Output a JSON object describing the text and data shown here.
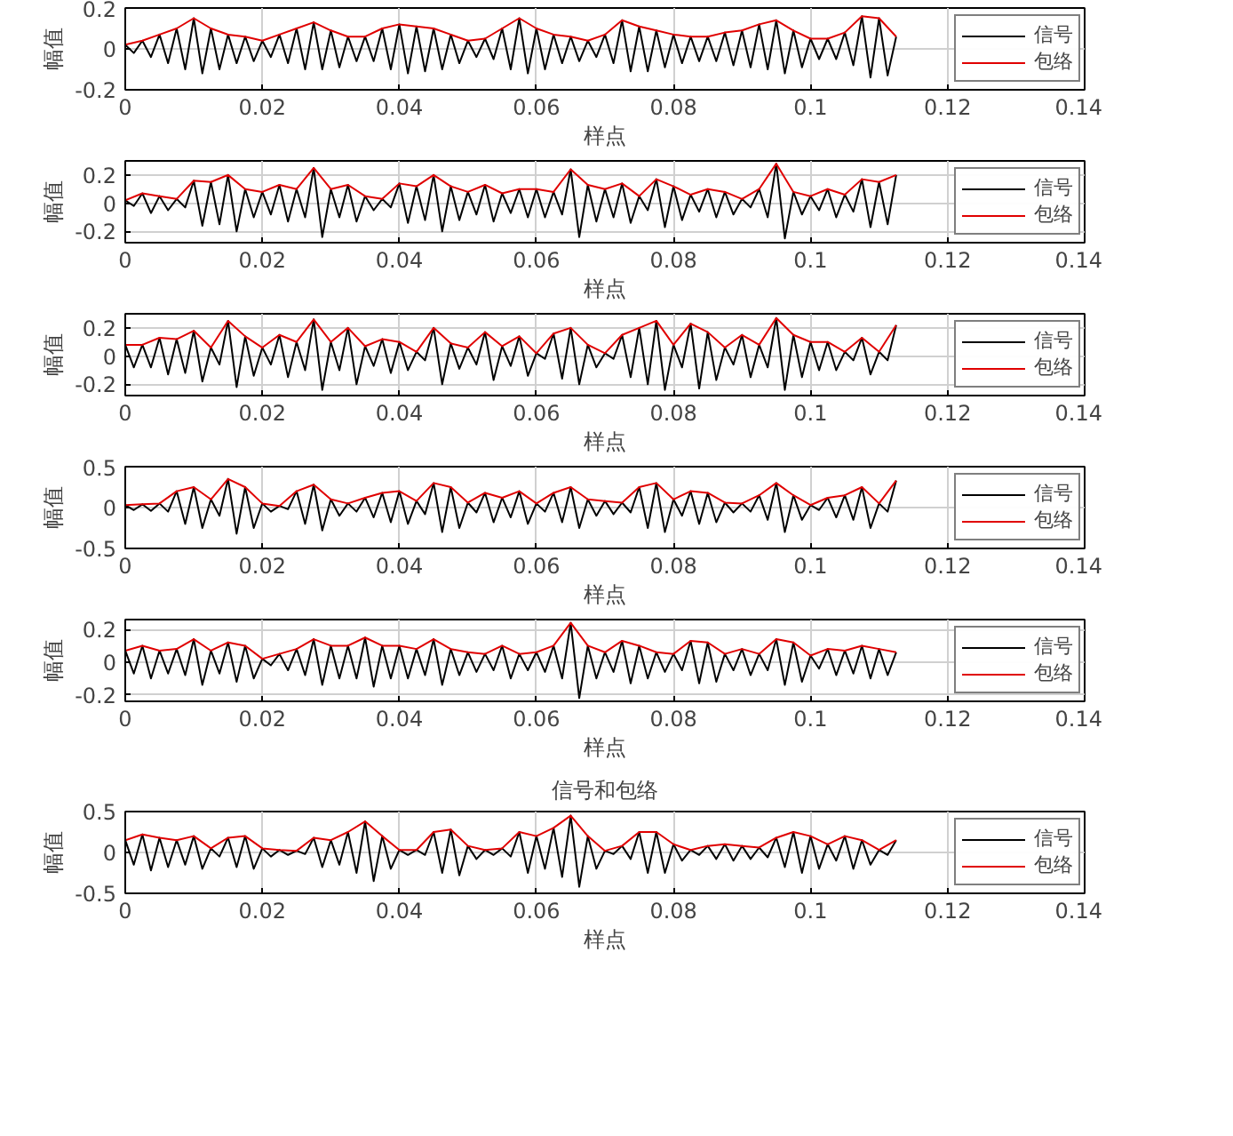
{
  "chart_data": [
    {
      "type": "line",
      "xlabel": "样点",
      "ylabel": "幅值",
      "xlim": [
        0,
        0.14
      ],
      "xticks": [
        0,
        0.02,
        0.04,
        0.06,
        0.08,
        0.1,
        0.12,
        0.14
      ],
      "ylim": [
        -0.2,
        0.2
      ],
      "yticks": [
        -0.2,
        0,
        0.2
      ],
      "grid": true,
      "legend": "right",
      "line_style": "solid",
      "x": [
        0,
        0.0025,
        0.005,
        0.0075,
        0.01,
        0.0125,
        0.015,
        0.0175,
        0.02,
        0.0225,
        0.025,
        0.0275,
        0.03,
        0.0325,
        0.035,
        0.0375,
        0.04,
        0.0425,
        0.045,
        0.0475,
        0.05,
        0.0525,
        0.055,
        0.0575,
        0.06,
        0.0625,
        0.065,
        0.0675,
        0.07,
        0.0725,
        0.075,
        0.0775,
        0.08,
        0.0825,
        0.085,
        0.0875,
        0.09,
        0.0925,
        0.095,
        0.0975,
        0.1,
        0.1025,
        0.105,
        0.1075,
        0.11,
        0.1125
      ],
      "series": [
        {
          "name": "信号",
          "color": "#000000",
          "x": [
            0,
            0.00125,
            0.0025,
            0.00375,
            0.005,
            0.00625,
            0.0075,
            0.00875,
            0.01,
            0.01125,
            0.0125,
            0.01375,
            0.015,
            0.01625,
            0.0175,
            0.01875,
            0.02,
            0.02125,
            0.0225,
            0.02375,
            0.025,
            0.02625,
            0.0275,
            0.02875,
            0.03,
            0.03125,
            0.0325,
            0.03375,
            0.035,
            0.03625,
            0.0375,
            0.03875,
            0.04,
            0.04125,
            0.0425,
            0.04375,
            0.045,
            0.04625,
            0.0475,
            0.04875,
            0.05,
            0.05125,
            0.0525,
            0.05375,
            0.055,
            0.05625,
            0.0575,
            0.05875,
            0.06,
            0.06125,
            0.0625,
            0.06375,
            0.065,
            0.06625,
            0.0675,
            0.06875,
            0.07,
            0.07125,
            0.0725,
            0.07375,
            0.075,
            0.07625,
            0.0775,
            0.07875,
            0.08,
            0.08125,
            0.0825,
            0.08375,
            0.085,
            0.08625,
            0.0875,
            0.08875,
            0.09,
            0.09125,
            0.0925,
            0.09375,
            0.095,
            0.09625,
            0.0975,
            0.09875,
            0.1,
            0.10125,
            0.1025,
            0.10375,
            0.105,
            0.10625,
            0.1075,
            0.10875,
            0.11,
            0.11125,
            0.1125
          ],
          "values": [
            0.02,
            -0.02,
            0.04,
            -0.04,
            0.07,
            -0.07,
            0.1,
            -0.1,
            0.15,
            -0.12,
            0.1,
            -0.1,
            0.07,
            -0.07,
            0.06,
            -0.06,
            0.04,
            -0.04,
            0.07,
            -0.07,
            0.1,
            -0.1,
            0.13,
            -0.1,
            0.09,
            -0.09,
            0.06,
            -0.06,
            0.06,
            -0.06,
            0.1,
            -0.1,
            0.12,
            -0.12,
            0.11,
            -0.11,
            0.1,
            -0.1,
            0.07,
            -0.07,
            0.04,
            -0.04,
            0.05,
            -0.05,
            0.1,
            -0.1,
            0.15,
            -0.12,
            0.1,
            -0.1,
            0.07,
            -0.07,
            0.06,
            -0.06,
            0.04,
            -0.04,
            0.07,
            -0.07,
            0.14,
            -0.11,
            0.11,
            -0.11,
            0.09,
            -0.09,
            0.07,
            -0.07,
            0.06,
            -0.06,
            0.06,
            -0.06,
            0.08,
            -0.08,
            0.09,
            -0.09,
            0.12,
            -0.1,
            0.14,
            -0.12,
            0.09,
            -0.09,
            0.05,
            -0.05,
            0.05,
            -0.05,
            0.08,
            -0.08,
            0.16,
            -0.14,
            0.15,
            -0.13,
            0.06
          ]
        },
        {
          "name": "包络",
          "color": "#e00000",
          "values": [
            0.02,
            0.04,
            0.07,
            0.1,
            0.15,
            0.1,
            0.07,
            0.06,
            0.04,
            0.07,
            0.1,
            0.13,
            0.09,
            0.06,
            0.06,
            0.1,
            0.12,
            0.11,
            0.1,
            0.07,
            0.04,
            0.05,
            0.1,
            0.15,
            0.1,
            0.07,
            0.06,
            0.04,
            0.07,
            0.14,
            0.11,
            0.09,
            0.07,
            0.06,
            0.06,
            0.08,
            0.09,
            0.12,
            0.14,
            0.09,
            0.05,
            0.05,
            0.08,
            0.16,
            0.15,
            0.06
          ]
        }
      ]
    },
    {
      "type": "line",
      "xlabel": "样点",
      "ylabel": "幅值",
      "xlim": [
        0,
        0.14
      ],
      "xticks": [
        0,
        0.02,
        0.04,
        0.06,
        0.08,
        0.1,
        0.12,
        0.14
      ],
      "ylim": [
        -0.28,
        0.3
      ],
      "yticks": [
        -0.2,
        0,
        0.2
      ],
      "grid": true,
      "legend": "right",
      "line_style": "solid",
      "x": [
        0,
        0.0025,
        0.005,
        0.0075,
        0.01,
        0.0125,
        0.015,
        0.0175,
        0.02,
        0.0225,
        0.025,
        0.0275,
        0.03,
        0.0325,
        0.035,
        0.0375,
        0.04,
        0.0425,
        0.045,
        0.0475,
        0.05,
        0.0525,
        0.055,
        0.0575,
        0.06,
        0.0625,
        0.065,
        0.0675,
        0.07,
        0.0725,
        0.075,
        0.0775,
        0.08,
        0.0825,
        0.085,
        0.0875,
        0.09,
        0.0925,
        0.095,
        0.0975,
        0.1,
        0.1025,
        0.105,
        0.1075,
        0.11,
        0.1125
      ],
      "series": [
        {
          "name": "信号",
          "color": "#000000",
          "x": [
            0,
            0.00125,
            0.0025,
            0.00375,
            0.005,
            0.00625,
            0.0075,
            0.00875,
            0.01,
            0.01125,
            0.0125,
            0.01375,
            0.015,
            0.01625,
            0.0175,
            0.01875,
            0.02,
            0.02125,
            0.0225,
            0.02375,
            0.025,
            0.02625,
            0.0275,
            0.02875,
            0.03,
            0.03125,
            0.0325,
            0.03375,
            0.035,
            0.03625,
            0.0375,
            0.03875,
            0.04,
            0.04125,
            0.0425,
            0.04375,
            0.045,
            0.04625,
            0.0475,
            0.04875,
            0.05,
            0.05125,
            0.0525,
            0.05375,
            0.055,
            0.05625,
            0.0575,
            0.05875,
            0.06,
            0.06125,
            0.0625,
            0.06375,
            0.065,
            0.06625,
            0.0675,
            0.06875,
            0.07,
            0.07125,
            0.0725,
            0.07375,
            0.075,
            0.07625,
            0.0775,
            0.07875,
            0.08,
            0.08125,
            0.0825,
            0.08375,
            0.085,
            0.08625,
            0.0875,
            0.08875,
            0.09,
            0.09125,
            0.0925,
            0.09375,
            0.095,
            0.09625,
            0.0975,
            0.09875,
            0.1,
            0.10125,
            0.1025,
            0.10375,
            0.105,
            0.10625,
            0.1075,
            0.10875,
            0.11,
            0.11125,
            0.1125
          ],
          "values": [
            0.02,
            -0.02,
            0.07,
            -0.07,
            0.05,
            -0.05,
            0.03,
            -0.03,
            0.16,
            -0.16,
            0.15,
            -0.15,
            0.2,
            -0.2,
            0.1,
            -0.1,
            0.08,
            -0.08,
            0.13,
            -0.13,
            0.1,
            -0.1,
            0.25,
            -0.24,
            0.1,
            -0.1,
            0.13,
            -0.13,
            0.05,
            -0.05,
            0.03,
            -0.03,
            0.14,
            -0.14,
            0.12,
            -0.12,
            0.2,
            -0.2,
            0.12,
            -0.12,
            0.08,
            -0.08,
            0.13,
            -0.13,
            0.07,
            -0.07,
            0.1,
            -0.1,
            0.1,
            -0.1,
            0.08,
            -0.08,
            0.24,
            -0.24,
            0.13,
            -0.13,
            0.1,
            -0.1,
            0.14,
            -0.14,
            0.05,
            -0.05,
            0.17,
            -0.17,
            0.12,
            -0.12,
            0.06,
            -0.06,
            0.1,
            -0.1,
            0.08,
            -0.08,
            0.03,
            -0.03,
            0.1,
            -0.1,
            0.28,
            -0.25,
            0.08,
            -0.08,
            0.05,
            -0.05,
            0.1,
            -0.1,
            0.06,
            -0.06,
            0.17,
            -0.17,
            0.15,
            -0.15,
            0.2
          ]
        },
        {
          "name": "包络",
          "color": "#e00000",
          "values": [
            0.02,
            0.07,
            0.05,
            0.03,
            0.16,
            0.15,
            0.2,
            0.1,
            0.08,
            0.13,
            0.1,
            0.25,
            0.1,
            0.13,
            0.05,
            0.03,
            0.14,
            0.12,
            0.2,
            0.12,
            0.08,
            0.13,
            0.07,
            0.1,
            0.1,
            0.08,
            0.24,
            0.13,
            0.1,
            0.14,
            0.05,
            0.17,
            0.12,
            0.06,
            0.1,
            0.08,
            0.03,
            0.1,
            0.28,
            0.08,
            0.05,
            0.1,
            0.06,
            0.17,
            0.15,
            0.2
          ]
        }
      ]
    },
    {
      "type": "line",
      "xlabel": "样点",
      "ylabel": "幅值",
      "xlim": [
        0,
        0.14
      ],
      "xticks": [
        0,
        0.02,
        0.04,
        0.06,
        0.08,
        0.1,
        0.12,
        0.14
      ],
      "ylim": [
        -0.28,
        0.3
      ],
      "yticks": [
        -0.2,
        0,
        0.2
      ],
      "grid": true,
      "legend": "right",
      "line_style": "solid",
      "x": [
        0,
        0.0025,
        0.005,
        0.0075,
        0.01,
        0.0125,
        0.015,
        0.0175,
        0.02,
        0.0225,
        0.025,
        0.0275,
        0.03,
        0.0325,
        0.035,
        0.0375,
        0.04,
        0.0425,
        0.045,
        0.0475,
        0.05,
        0.0525,
        0.055,
        0.0575,
        0.06,
        0.0625,
        0.065,
        0.0675,
        0.07,
        0.0725,
        0.075,
        0.0775,
        0.08,
        0.0825,
        0.085,
        0.0875,
        0.09,
        0.0925,
        0.095,
        0.0975,
        0.1,
        0.1025,
        0.105,
        0.1075,
        0.11,
        0.1125
      ],
      "series": [
        {
          "name": "信号",
          "color": "#000000",
          "x": [
            0,
            0.00125,
            0.0025,
            0.00375,
            0.005,
            0.00625,
            0.0075,
            0.00875,
            0.01,
            0.01125,
            0.0125,
            0.01375,
            0.015,
            0.01625,
            0.0175,
            0.01875,
            0.02,
            0.02125,
            0.0225,
            0.02375,
            0.025,
            0.02625,
            0.0275,
            0.02875,
            0.03,
            0.03125,
            0.0325,
            0.03375,
            0.035,
            0.03625,
            0.0375,
            0.03875,
            0.04,
            0.04125,
            0.0425,
            0.04375,
            0.045,
            0.04625,
            0.0475,
            0.04875,
            0.05,
            0.05125,
            0.0525,
            0.05375,
            0.055,
            0.05625,
            0.0575,
            0.05875,
            0.06,
            0.06125,
            0.0625,
            0.06375,
            0.065,
            0.06625,
            0.0675,
            0.06875,
            0.07,
            0.07125,
            0.0725,
            0.07375,
            0.075,
            0.07625,
            0.0775,
            0.07875,
            0.08,
            0.08125,
            0.0825,
            0.08375,
            0.085,
            0.08625,
            0.0875,
            0.08875,
            0.09,
            0.09125,
            0.0925,
            0.09375,
            0.095,
            0.09625,
            0.0975,
            0.09875,
            0.1,
            0.10125,
            0.1025,
            0.10375,
            0.105,
            0.10625,
            0.1075,
            0.10875,
            0.11,
            0.11125,
            0.1125
          ],
          "values": [
            0.08,
            -0.08,
            0.08,
            -0.08,
            0.13,
            -0.13,
            0.12,
            -0.12,
            0.18,
            -0.18,
            0.06,
            -0.06,
            0.25,
            -0.22,
            0.14,
            -0.14,
            0.06,
            -0.06,
            0.15,
            -0.15,
            0.1,
            -0.1,
            0.26,
            -0.24,
            0.1,
            -0.1,
            0.2,
            -0.2,
            0.07,
            -0.07,
            0.12,
            -0.12,
            0.1,
            -0.1,
            0.03,
            -0.03,
            0.2,
            -0.2,
            0.09,
            -0.09,
            0.06,
            -0.06,
            0.17,
            -0.17,
            0.07,
            -0.07,
            0.14,
            -0.14,
            0.02,
            -0.02,
            0.16,
            -0.16,
            0.2,
            -0.2,
            0.08,
            -0.08,
            0.02,
            -0.02,
            0.15,
            -0.15,
            0.2,
            -0.2,
            0.25,
            -0.24,
            0.08,
            -0.08,
            0.23,
            -0.23,
            0.17,
            -0.17,
            0.06,
            -0.06,
            0.15,
            -0.15,
            0.08,
            -0.08,
            0.27,
            -0.24,
            0.15,
            -0.15,
            0.1,
            -0.1,
            0.1,
            -0.1,
            0.03,
            -0.03,
            0.13,
            -0.13,
            0.03,
            -0.03,
            0.22
          ]
        },
        {
          "name": "包络",
          "color": "#e00000",
          "values": [
            0.08,
            0.08,
            0.13,
            0.12,
            0.18,
            0.06,
            0.25,
            0.14,
            0.06,
            0.15,
            0.1,
            0.26,
            0.1,
            0.2,
            0.07,
            0.12,
            0.1,
            0.03,
            0.2,
            0.09,
            0.06,
            0.17,
            0.07,
            0.14,
            0.02,
            0.16,
            0.2,
            0.08,
            0.02,
            0.15,
            0.2,
            0.25,
            0.08,
            0.23,
            0.17,
            0.06,
            0.15,
            0.08,
            0.27,
            0.15,
            0.1,
            0.1,
            0.03,
            0.13,
            0.03,
            0.22
          ]
        }
      ]
    },
    {
      "type": "line",
      "xlabel": "样点",
      "ylabel": "幅值",
      "xlim": [
        0,
        0.14
      ],
      "xticks": [
        0,
        0.02,
        0.04,
        0.06,
        0.08,
        0.1,
        0.12,
        0.14
      ],
      "ylim": [
        -0.5,
        0.5
      ],
      "yticks": [
        -0.5,
        0,
        0.5
      ],
      "grid": true,
      "legend": "right",
      "line_style": "solid",
      "x": [
        0,
        0.0025,
        0.005,
        0.0075,
        0.01,
        0.0125,
        0.015,
        0.0175,
        0.02,
        0.0225,
        0.025,
        0.0275,
        0.03,
        0.0325,
        0.035,
        0.0375,
        0.04,
        0.0425,
        0.045,
        0.0475,
        0.05,
        0.0525,
        0.055,
        0.0575,
        0.06,
        0.0625,
        0.065,
        0.0675,
        0.07,
        0.0725,
        0.075,
        0.0775,
        0.08,
        0.0825,
        0.085,
        0.0875,
        0.09,
        0.0925,
        0.095,
        0.0975,
        0.1,
        0.1025,
        0.105,
        0.1075,
        0.11,
        0.1125
      ],
      "series": [
        {
          "name": "信号",
          "color": "#000000",
          "x": [
            0,
            0.00125,
            0.0025,
            0.00375,
            0.005,
            0.00625,
            0.0075,
            0.00875,
            0.01,
            0.01125,
            0.0125,
            0.01375,
            0.015,
            0.01625,
            0.0175,
            0.01875,
            0.02,
            0.02125,
            0.0225,
            0.02375,
            0.025,
            0.02625,
            0.0275,
            0.02875,
            0.03,
            0.03125,
            0.0325,
            0.03375,
            0.035,
            0.03625,
            0.0375,
            0.03875,
            0.04,
            0.04125,
            0.0425,
            0.04375,
            0.045,
            0.04625,
            0.0475,
            0.04875,
            0.05,
            0.05125,
            0.0525,
            0.05375,
            0.055,
            0.05625,
            0.0575,
            0.05875,
            0.06,
            0.06125,
            0.0625,
            0.06375,
            0.065,
            0.06625,
            0.0675,
            0.06875,
            0.07,
            0.07125,
            0.0725,
            0.07375,
            0.075,
            0.07625,
            0.0775,
            0.07875,
            0.08,
            0.08125,
            0.0825,
            0.08375,
            0.085,
            0.08625,
            0.0875,
            0.08875,
            0.09,
            0.09125,
            0.0925,
            0.09375,
            0.095,
            0.09625,
            0.0975,
            0.09875,
            0.1,
            0.10125,
            0.1025,
            0.10375,
            0.105,
            0.10625,
            0.1075,
            0.10875,
            0.11,
            0.11125,
            0.1125
          ],
          "values": [
            0.03,
            -0.03,
            0.04,
            -0.04,
            0.05,
            -0.05,
            0.2,
            -0.2,
            0.25,
            -0.25,
            0.1,
            -0.1,
            0.35,
            -0.32,
            0.25,
            -0.25,
            0.05,
            -0.05,
            0.02,
            -0.02,
            0.2,
            -0.2,
            0.28,
            -0.28,
            0.1,
            -0.1,
            0.05,
            -0.05,
            0.12,
            -0.12,
            0.18,
            -0.18,
            0.2,
            -0.2,
            0.08,
            -0.08,
            0.3,
            -0.3,
            0.25,
            -0.25,
            0.06,
            -0.06,
            0.18,
            -0.18,
            0.12,
            -0.12,
            0.2,
            -0.2,
            0.05,
            -0.05,
            0.18,
            -0.18,
            0.25,
            -0.25,
            0.1,
            -0.1,
            0.08,
            -0.08,
            0.06,
            -0.06,
            0.25,
            -0.25,
            0.3,
            -0.3,
            0.1,
            -0.1,
            0.2,
            -0.2,
            0.18,
            -0.18,
            0.06,
            -0.06,
            0.05,
            -0.05,
            0.15,
            -0.15,
            0.3,
            -0.3,
            0.15,
            -0.15,
            0.03,
            -0.03,
            0.12,
            -0.12,
            0.15,
            -0.15,
            0.25,
            -0.25,
            0.05,
            -0.05,
            0.33
          ]
        },
        {
          "name": "包络",
          "color": "#e00000",
          "values": [
            0.03,
            0.04,
            0.05,
            0.2,
            0.25,
            0.1,
            0.35,
            0.25,
            0.05,
            0.02,
            0.2,
            0.28,
            0.1,
            0.05,
            0.12,
            0.18,
            0.2,
            0.08,
            0.3,
            0.25,
            0.06,
            0.18,
            0.12,
            0.2,
            0.05,
            0.18,
            0.25,
            0.1,
            0.08,
            0.06,
            0.25,
            0.3,
            0.1,
            0.2,
            0.18,
            0.06,
            0.05,
            0.15,
            0.3,
            0.15,
            0.03,
            0.12,
            0.15,
            0.25,
            0.05,
            0.33
          ]
        }
      ]
    },
    {
      "type": "line",
      "xlabel": "样点",
      "ylabel": "幅值",
      "xlim": [
        0,
        0.14
      ],
      "xticks": [
        0,
        0.02,
        0.04,
        0.06,
        0.08,
        0.1,
        0.12,
        0.14
      ],
      "ylim": [
        -0.24,
        0.26
      ],
      "yticks": [
        -0.2,
        0,
        0.2
      ],
      "grid": true,
      "legend": "right",
      "line_style": "solid",
      "x": [
        0,
        0.0025,
        0.005,
        0.0075,
        0.01,
        0.0125,
        0.015,
        0.0175,
        0.02,
        0.0225,
        0.025,
        0.0275,
        0.03,
        0.0325,
        0.035,
        0.0375,
        0.04,
        0.0425,
        0.045,
        0.0475,
        0.05,
        0.0525,
        0.055,
        0.0575,
        0.06,
        0.0625,
        0.065,
        0.0675,
        0.07,
        0.0725,
        0.075,
        0.0775,
        0.08,
        0.0825,
        0.085,
        0.0875,
        0.09,
        0.0925,
        0.095,
        0.0975,
        0.1,
        0.1025,
        0.105,
        0.1075,
        0.11,
        0.1125
      ],
      "series": [
        {
          "name": "信号",
          "color": "#000000",
          "x": [
            0,
            0.00125,
            0.0025,
            0.00375,
            0.005,
            0.00625,
            0.0075,
            0.00875,
            0.01,
            0.01125,
            0.0125,
            0.01375,
            0.015,
            0.01625,
            0.0175,
            0.01875,
            0.02,
            0.02125,
            0.0225,
            0.02375,
            0.025,
            0.02625,
            0.0275,
            0.02875,
            0.03,
            0.03125,
            0.0325,
            0.03375,
            0.035,
            0.03625,
            0.0375,
            0.03875,
            0.04,
            0.04125,
            0.0425,
            0.04375,
            0.045,
            0.04625,
            0.0475,
            0.04875,
            0.05,
            0.05125,
            0.0525,
            0.05375,
            0.055,
            0.05625,
            0.0575,
            0.05875,
            0.06,
            0.06125,
            0.0625,
            0.06375,
            0.065,
            0.06625,
            0.0675,
            0.06875,
            0.07,
            0.07125,
            0.0725,
            0.07375,
            0.075,
            0.07625,
            0.0775,
            0.07875,
            0.08,
            0.08125,
            0.0825,
            0.08375,
            0.085,
            0.08625,
            0.0875,
            0.08875,
            0.09,
            0.09125,
            0.0925,
            0.09375,
            0.095,
            0.09625,
            0.0975,
            0.09875,
            0.1,
            0.10125,
            0.1025,
            0.10375,
            0.105,
            0.10625,
            0.1075,
            0.10875,
            0.11,
            0.11125,
            0.1125
          ],
          "values": [
            0.07,
            -0.07,
            0.1,
            -0.1,
            0.07,
            -0.07,
            0.08,
            -0.08,
            0.14,
            -0.14,
            0.07,
            -0.07,
            0.12,
            -0.12,
            0.1,
            -0.1,
            0.02,
            -0.02,
            0.05,
            -0.05,
            0.08,
            -0.08,
            0.14,
            -0.14,
            0.1,
            -0.1,
            0.1,
            -0.1,
            0.15,
            -0.15,
            0.1,
            -0.1,
            0.1,
            -0.1,
            0.08,
            -0.08,
            0.14,
            -0.14,
            0.08,
            -0.08,
            0.06,
            -0.06,
            0.05,
            -0.05,
            0.1,
            -0.1,
            0.05,
            -0.05,
            0.06,
            -0.06,
            0.1,
            -0.1,
            0.24,
            -0.22,
            0.1,
            -0.1,
            0.06,
            -0.06,
            0.13,
            -0.13,
            0.1,
            -0.1,
            0.06,
            -0.06,
            0.05,
            -0.05,
            0.13,
            -0.13,
            0.12,
            -0.12,
            0.05,
            -0.05,
            0.08,
            -0.08,
            0.05,
            -0.05,
            0.14,
            -0.14,
            0.12,
            -0.12,
            0.04,
            -0.04,
            0.08,
            -0.08,
            0.07,
            -0.07,
            0.1,
            -0.1,
            0.08,
            -0.08,
            0.06
          ]
        },
        {
          "name": "包络",
          "color": "#e00000",
          "values": [
            0.07,
            0.1,
            0.07,
            0.08,
            0.14,
            0.07,
            0.12,
            0.1,
            0.02,
            0.05,
            0.08,
            0.14,
            0.1,
            0.1,
            0.15,
            0.1,
            0.1,
            0.08,
            0.14,
            0.08,
            0.06,
            0.05,
            0.1,
            0.05,
            0.06,
            0.1,
            0.24,
            0.1,
            0.06,
            0.13,
            0.1,
            0.06,
            0.05,
            0.13,
            0.12,
            0.05,
            0.08,
            0.05,
            0.14,
            0.12,
            0.04,
            0.08,
            0.07,
            0.1,
            0.08,
            0.06
          ]
        }
      ]
    },
    {
      "type": "line",
      "title": "信号和包络",
      "xlabel": "样点",
      "ylabel": "幅值",
      "xlim": [
        0,
        0.14
      ],
      "xticks": [
        0,
        0.02,
        0.04,
        0.06,
        0.08,
        0.1,
        0.12,
        0.14
      ],
      "ylim": [
        -0.5,
        0.5
      ],
      "yticks": [
        -0.5,
        0,
        0.5
      ],
      "grid": true,
      "legend": "right",
      "line_style": "solid",
      "x": [
        0,
        0.0025,
        0.005,
        0.0075,
        0.01,
        0.0125,
        0.015,
        0.0175,
        0.02,
        0.0225,
        0.025,
        0.0275,
        0.03,
        0.0325,
        0.035,
        0.0375,
        0.04,
        0.0425,
        0.045,
        0.0475,
        0.05,
        0.0525,
        0.055,
        0.0575,
        0.06,
        0.0625,
        0.065,
        0.0675,
        0.07,
        0.0725,
        0.075,
        0.0775,
        0.08,
        0.0825,
        0.085,
        0.0875,
        0.09,
        0.0925,
        0.095,
        0.0975,
        0.1,
        0.1025,
        0.105,
        0.1075,
        0.11,
        0.1125
      ],
      "series": [
        {
          "name": "信号",
          "color": "#000000",
          "x": [
            0,
            0.00125,
            0.0025,
            0.00375,
            0.005,
            0.00625,
            0.0075,
            0.00875,
            0.01,
            0.01125,
            0.0125,
            0.01375,
            0.015,
            0.01625,
            0.0175,
            0.01875,
            0.02,
            0.02125,
            0.0225,
            0.02375,
            0.025,
            0.02625,
            0.0275,
            0.02875,
            0.03,
            0.03125,
            0.0325,
            0.03375,
            0.035,
            0.03625,
            0.0375,
            0.03875,
            0.04,
            0.04125,
            0.0425,
            0.04375,
            0.045,
            0.04625,
            0.0475,
            0.04875,
            0.05,
            0.05125,
            0.0525,
            0.05375,
            0.055,
            0.05625,
            0.0575,
            0.05875,
            0.06,
            0.06125,
            0.0625,
            0.06375,
            0.065,
            0.06625,
            0.0675,
            0.06875,
            0.07,
            0.07125,
            0.0725,
            0.07375,
            0.075,
            0.07625,
            0.0775,
            0.07875,
            0.08,
            0.08125,
            0.0825,
            0.08375,
            0.085,
            0.08625,
            0.0875,
            0.08875,
            0.09,
            0.09125,
            0.0925,
            0.09375,
            0.095,
            0.09625,
            0.0975,
            0.09875,
            0.1,
            0.10125,
            0.1025,
            0.10375,
            0.105,
            0.10625,
            0.1075,
            0.10875,
            0.11,
            0.11125,
            0.1125
          ],
          "values": [
            0.15,
            -0.15,
            0.22,
            -0.22,
            0.18,
            -0.18,
            0.15,
            -0.15,
            0.2,
            -0.2,
            0.05,
            -0.05,
            0.18,
            -0.18,
            0.2,
            -0.2,
            0.05,
            -0.05,
            0.03,
            -0.03,
            0.02,
            -0.02,
            0.18,
            -0.18,
            0.15,
            -0.15,
            0.25,
            -0.25,
            0.38,
            -0.35,
            0.2,
            -0.2,
            0.03,
            -0.03,
            0.03,
            -0.03,
            0.25,
            -0.25,
            0.28,
            -0.28,
            0.08,
            -0.08,
            0.03,
            -0.03,
            0.05,
            -0.05,
            0.25,
            -0.25,
            0.2,
            -0.2,
            0.3,
            -0.3,
            0.45,
            -0.42,
            0.2,
            -0.2,
            0.02,
            -0.02,
            0.08,
            -0.08,
            0.25,
            -0.25,
            0.25,
            -0.25,
            0.1,
            -0.1,
            0.03,
            -0.03,
            0.08,
            -0.08,
            0.1,
            -0.1,
            0.08,
            -0.08,
            0.06,
            -0.06,
            0.18,
            -0.18,
            0.25,
            -0.25,
            0.2,
            -0.2,
            0.1,
            -0.1,
            0.2,
            -0.2,
            0.15,
            -0.15,
            0.03,
            -0.03,
            0.15
          ]
        },
        {
          "name": "包络",
          "color": "#e00000",
          "values": [
            0.15,
            0.22,
            0.18,
            0.15,
            0.2,
            0.05,
            0.18,
            0.2,
            0.05,
            0.03,
            0.02,
            0.18,
            0.15,
            0.25,
            0.38,
            0.2,
            0.03,
            0.03,
            0.25,
            0.28,
            0.08,
            0.03,
            0.05,
            0.25,
            0.2,
            0.3,
            0.45,
            0.2,
            0.02,
            0.08,
            0.25,
            0.25,
            0.1,
            0.03,
            0.08,
            0.1,
            0.08,
            0.06,
            0.18,
            0.25,
            0.2,
            0.1,
            0.2,
            0.15,
            0.03,
            0.15
          ]
        }
      ]
    }
  ]
}
